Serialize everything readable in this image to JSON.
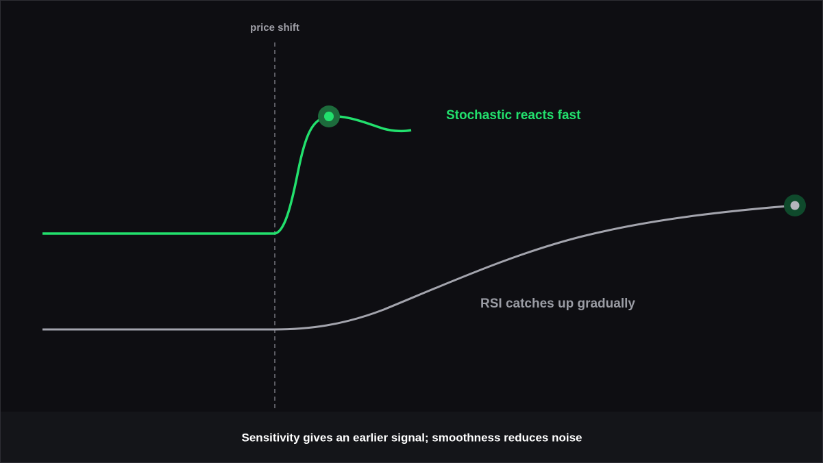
{
  "annotation": "price shift",
  "stochastic_label": "Stochastic reacts fast",
  "rsi_label": "RSI catches up gradually",
  "caption": "Sensitivity gives an earlier signal; smoothness reduces noise"
}
